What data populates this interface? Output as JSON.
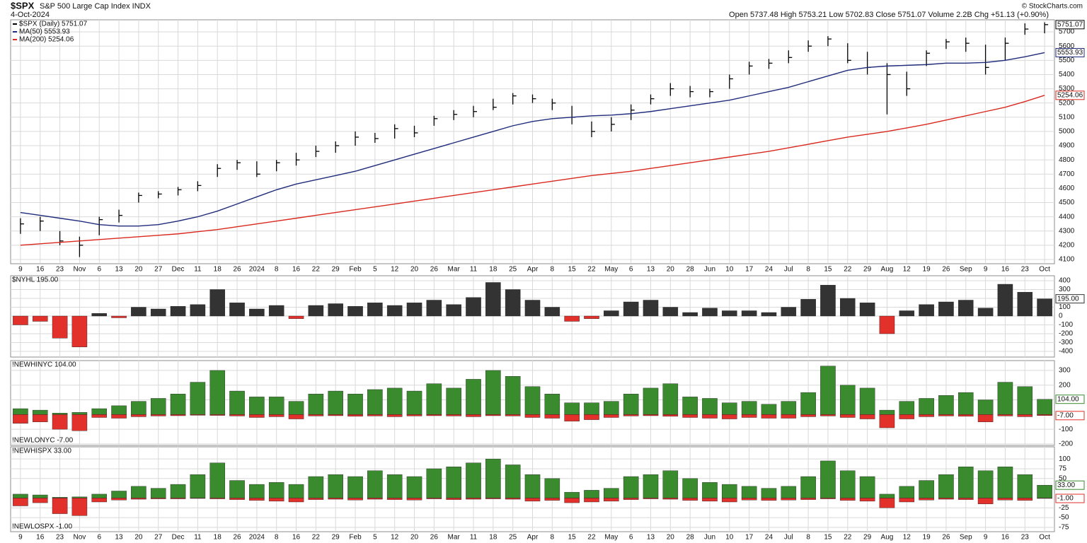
{
  "chart_data": [
    {
      "type": "hlc",
      "title": "$SPX",
      "subtitle": "S&P 500 Large Cap Index INDX",
      "date": "4-Oct-2024",
      "quote": "Open 5737.48 High 5753.21 Low 5702.83 Close 5751.07 Volume 2.2B Chg +51.13 (+0.90%)",
      "credit": "© StockCharts.com",
      "categories": [
        "9",
        "16",
        "23",
        "Nov",
        "6",
        "13",
        "20",
        "27",
        "Dec",
        "11",
        "18",
        "26",
        "2024",
        "8",
        "16",
        "22",
        "29",
        "Feb",
        "5",
        "12",
        "20",
        "26",
        "Mar",
        "11",
        "18",
        "25",
        "Apr",
        "8",
        "15",
        "22",
        "May",
        "6",
        "13",
        "20",
        "28",
        "Jun",
        "10",
        "17",
        "24",
        "Jul",
        "8",
        "15",
        "22",
        "29",
        "Aug",
        "12",
        "19",
        "26",
        "Sep",
        "9",
        "16",
        "23",
        "Oct"
      ],
      "ylim": [
        4070,
        5785
      ],
      "yticks": [
        4100,
        4200,
        4300,
        4400,
        4500,
        4600,
        4700,
        4800,
        4900,
        5000,
        5100,
        5200,
        5300,
        5400,
        5500,
        5600,
        5700
      ],
      "grid": true,
      "series": [
        {
          "name": "$SPX (Daily) 5751.07",
          "color": "#000000",
          "end_label": "5751.07",
          "high": [
            4390,
            4400,
            4300,
            4260,
            4400,
            4450,
            4570,
            4580,
            4610,
            4650,
            4770,
            4800,
            4790,
            4800,
            4850,
            4900,
            4930,
            5000,
            4990,
            5050,
            5040,
            5110,
            5150,
            5180,
            5230,
            5270,
            5260,
            5230,
            5180,
            5070,
            5100,
            5190,
            5260,
            5340,
            5320,
            5300,
            5400,
            5490,
            5510,
            5570,
            5640,
            5670,
            5620,
            5560,
            5480,
            5420,
            5570,
            5650,
            5660,
            5610,
            5660,
            5760,
            5767
          ],
          "low": [
            4280,
            4300,
            4200,
            4117,
            4270,
            4360,
            4500,
            4530,
            4550,
            4580,
            4680,
            4730,
            4680,
            4720,
            4760,
            4820,
            4850,
            4900,
            4920,
            4950,
            4960,
            5040,
            5080,
            5100,
            5150,
            5190,
            5200,
            5150,
            5050,
            4960,
            5000,
            5080,
            5190,
            5250,
            5240,
            5240,
            5300,
            5400,
            5440,
            5480,
            5560,
            5600,
            5480,
            5400,
            5120,
            5250,
            5460,
            5580,
            5560,
            5400,
            5500,
            5680,
            5690
          ],
          "values": [
            4350,
            4370,
            4230,
            4200,
            4380,
            4410,
            4550,
            4560,
            4590,
            4620,
            4740,
            4780,
            4700,
            4780,
            4800,
            4860,
            4900,
            4960,
            4950,
            5020,
            4990,
            5090,
            5120,
            5140,
            5170,
            5250,
            5230,
            5200,
            5100,
            5000,
            5050,
            5150,
            5230,
            5300,
            5280,
            5280,
            5370,
            5460,
            5480,
            5520,
            5600,
            5650,
            5500,
            5450,
            5400,
            5300,
            5550,
            5630,
            5620,
            5450,
            5620,
            5720,
            5751.07
          ]
        },
        {
          "name": "MA(50) 5553.93",
          "color": "#1f2b7b",
          "end_label": "5553.93",
          "values": [
            4430,
            4410,
            4390,
            4370,
            4345,
            4335,
            4335,
            4345,
            4370,
            4400,
            4440,
            4490,
            4540,
            4590,
            4630,
            4660,
            4690,
            4720,
            4760,
            4800,
            4840,
            4880,
            4920,
            4960,
            5000,
            5040,
            5070,
            5090,
            5100,
            5110,
            5115,
            5125,
            5140,
            5160,
            5180,
            5200,
            5220,
            5250,
            5280,
            5310,
            5350,
            5390,
            5430,
            5450,
            5460,
            5465,
            5470,
            5480,
            5480,
            5485,
            5500,
            5525,
            5553.93
          ]
        },
        {
          "name": "MA(200) 5254.06",
          "color": "#d9281e",
          "end_label": "5254.06",
          "values": [
            4200,
            4210,
            4220,
            4230,
            4240,
            4250,
            4260,
            4270,
            4280,
            4295,
            4310,
            4330,
            4350,
            4370,
            4390,
            4410,
            4430,
            4450,
            4470,
            4490,
            4510,
            4530,
            4550,
            4570,
            4590,
            4610,
            4630,
            4650,
            4670,
            4690,
            4705,
            4720,
            4740,
            4760,
            4780,
            4800,
            4820,
            4840,
            4860,
            4885,
            4910,
            4935,
            4960,
            4980,
            5000,
            5025,
            5050,
            5080,
            5110,
            5140,
            5170,
            5210,
            5254.06
          ]
        }
      ]
    },
    {
      "type": "bar",
      "ylim": [
        -464,
        456
      ],
      "yticks": [
        -400,
        -300,
        -200,
        -100,
        0,
        100,
        200,
        300,
        400
      ],
      "grid": true,
      "series": [
        {
          "name": "$NYHL 195.00",
          "color": "#333333",
          "negative_color": "#e2302a",
          "end_label": "195.00",
          "values": [
            -100,
            -60,
            -250,
            -350,
            30,
            -20,
            100,
            80,
            110,
            130,
            300,
            150,
            80,
            120,
            -30,
            120,
            140,
            110,
            150,
            120,
            150,
            180,
            130,
            210,
            380,
            300,
            180,
            100,
            -60,
            -30,
            60,
            160,
            180,
            100,
            40,
            90,
            60,
            60,
            40,
            100,
            190,
            350,
            200,
            150,
            -200,
            60,
            130,
            160,
            180,
            90,
            360,
            270,
            195
          ]
        }
      ]
    },
    {
      "type": "bar",
      "ylim": [
        -210,
        367
      ],
      "yticks": [
        -200,
        -100,
        100,
        200,
        300
      ],
      "grid": true,
      "series": [
        {
          "name": "!NEWHINYC 104.00",
          "color": "#3a8a2e",
          "end_label": "104.00",
          "values": [
            40,
            30,
            10,
            15,
            40,
            60,
            90,
            110,
            140,
            220,
            300,
            160,
            120,
            120,
            90,
            140,
            160,
            140,
            170,
            180,
            160,
            210,
            180,
            240,
            300,
            260,
            190,
            140,
            80,
            80,
            90,
            140,
            180,
            210,
            120,
            110,
            80,
            90,
            70,
            90,
            150,
            330,
            200,
            180,
            30,
            90,
            110,
            130,
            150,
            100,
            220,
            190,
            104
          ]
        },
        {
          "name": "!NEWLONYC -7.00",
          "color": "#e2302a",
          "end_label": "-7.00",
          "values": [
            -60,
            -50,
            -100,
            -110,
            -20,
            -25,
            -15,
            -10,
            -8,
            -5,
            -6,
            -10,
            -20,
            -15,
            -30,
            -10,
            -8,
            -12,
            -10,
            -15,
            -10,
            -8,
            -10,
            -15,
            -8,
            -10,
            -20,
            -25,
            -45,
            -35,
            -20,
            -10,
            -8,
            -12,
            -20,
            -25,
            -30,
            -20,
            -25,
            -25,
            -15,
            -10,
            -20,
            -30,
            -90,
            -30,
            -15,
            -10,
            -12,
            -50,
            -10,
            -15,
            -7
          ]
        }
      ]
    },
    {
      "type": "bar",
      "ylim": [
        -86,
        131
      ],
      "yticks": [
        -75,
        -50,
        -25,
        50,
        75,
        100
      ],
      "grid": true,
      "series": [
        {
          "name": "!NEWHISPX 33.00",
          "color": "#3a8a2e",
          "end_label": "33.00",
          "values": [
            10,
            8,
            2,
            3,
            10,
            18,
            30,
            25,
            35,
            60,
            90,
            45,
            35,
            40,
            35,
            55,
            60,
            55,
            70,
            60,
            55,
            75,
            80,
            90,
            100,
            85,
            60,
            50,
            15,
            20,
            25,
            55,
            60,
            70,
            50,
            40,
            35,
            30,
            25,
            30,
            55,
            95,
            70,
            55,
            10,
            30,
            45,
            60,
            80,
            70,
            80,
            60,
            33
          ]
        },
        {
          "name": "!NEWLOSPX -1.00",
          "color": "#e2302a",
          "end_label": "-1.00",
          "values": [
            -20,
            -12,
            -40,
            -45,
            -10,
            -5,
            -3,
            -2,
            -2,
            -1,
            -2,
            -4,
            -6,
            -8,
            -10,
            -4,
            -3,
            -5,
            -3,
            -4,
            -5,
            -2,
            -4,
            -3,
            -2,
            -3,
            -8,
            -6,
            -12,
            -10,
            -8,
            -4,
            -2,
            -3,
            -6,
            -8,
            -10,
            -5,
            -6,
            -5,
            -4,
            -2,
            -6,
            -8,
            -25,
            -10,
            -5,
            -3,
            -4,
            -15,
            -5,
            -6,
            -1
          ]
        }
      ]
    }
  ]
}
